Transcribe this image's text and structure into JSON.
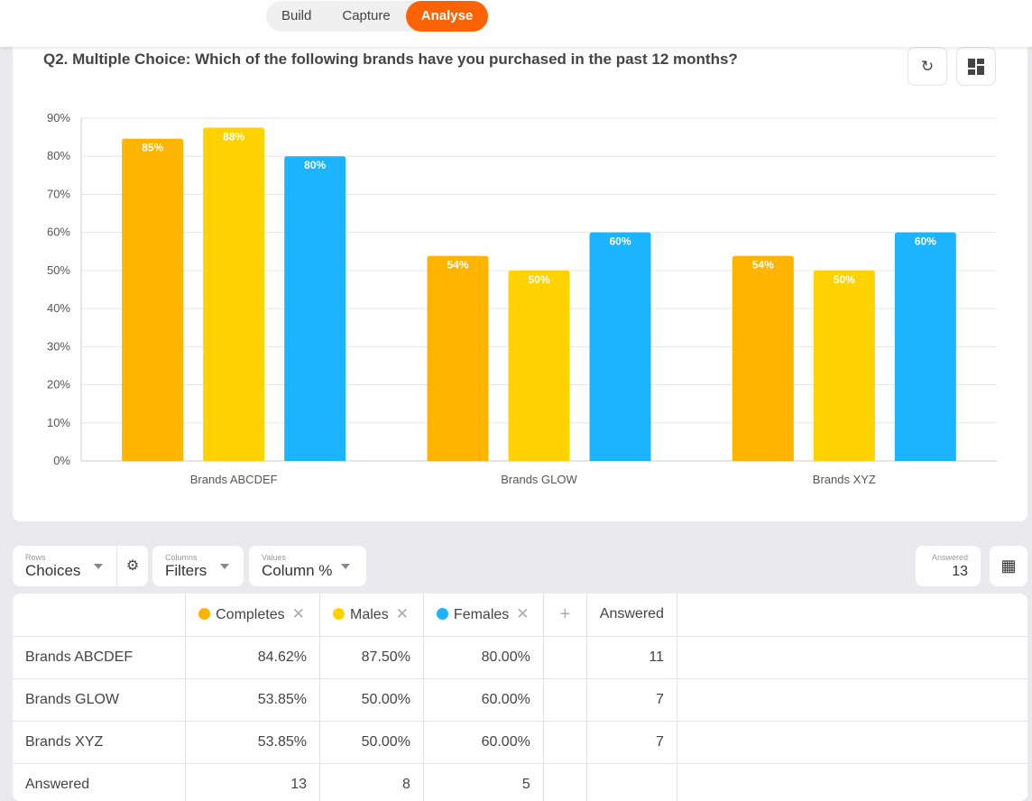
{
  "nav": {
    "tabs": [
      {
        "label": "Build"
      },
      {
        "label": "Capture"
      },
      {
        "label": "Analyse",
        "active": true
      }
    ],
    "accent": "#ff6200"
  },
  "question": {
    "title": "Q2. Multiple Choice: Which of the following brands have you purchased in the past 12 months?",
    "icons": [
      "refresh-icon",
      "layout-icon"
    ]
  },
  "chart_data": {
    "type": "bar",
    "categories": [
      "Brands ABCDEF",
      "Brands GLOW",
      "Brands XYZ"
    ],
    "series": [
      {
        "name": "Completes",
        "color": "#ffb400",
        "values": [
          84.62,
          53.85,
          53.85
        ],
        "labels": [
          "85%",
          "54%",
          "54%"
        ]
      },
      {
        "name": "Males",
        "color": "#ffd200",
        "values": [
          87.5,
          50,
          50
        ],
        "labels": [
          "88%",
          "50%",
          "50%"
        ]
      },
      {
        "name": "Females",
        "color": "#1cb4ff",
        "values": [
          80,
          60,
          60
        ],
        "labels": [
          "80%",
          "60%",
          "60%"
        ]
      }
    ],
    "yticks": [
      "0%",
      "10%",
      "20%",
      "30%",
      "40%",
      "50%",
      "60%",
      "70%",
      "80%",
      "90%"
    ],
    "ylim": [
      0,
      90
    ],
    "grid": true
  },
  "controls": {
    "rows": {
      "label": "Rows",
      "value": "Choices"
    },
    "columns": {
      "label": "Columns",
      "value": "Filters"
    },
    "values": {
      "label": "Values",
      "value": "Column %"
    },
    "answered": {
      "label": "Answered",
      "value": "13"
    }
  },
  "table": {
    "headers": [
      "Completes",
      "Males",
      "Females",
      "+",
      "Answered"
    ],
    "rows": [
      {
        "label": "Brands ABCDEF",
        "cells": [
          "84.62%",
          "87.50%",
          "80.00%",
          "",
          "11"
        ]
      },
      {
        "label": "Brands GLOW",
        "cells": [
          "53.85%",
          "50.00%",
          "60.00%",
          "",
          "7"
        ]
      },
      {
        "label": "Brands XYZ",
        "cells": [
          "53.85%",
          "50.00%",
          "60.00%",
          "",
          "7"
        ]
      },
      {
        "label": "Answered",
        "cells": [
          "13",
          "8",
          "5",
          "",
          ""
        ]
      }
    ]
  }
}
